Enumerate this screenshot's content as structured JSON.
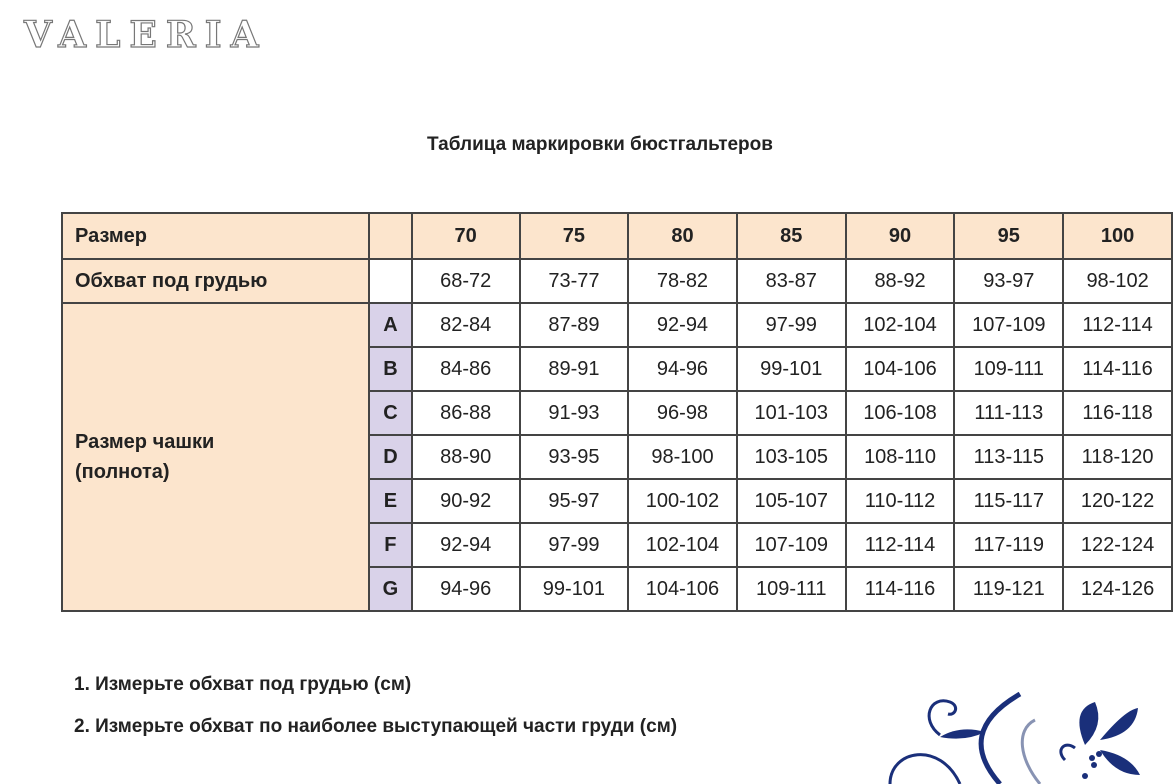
{
  "logo": "VALERIA",
  "title": "Таблица маркировки бюстгальтеров",
  "table": {
    "row_size_label": "Размер",
    "sizes": [
      "70",
      "75",
      "80",
      "85",
      "90",
      "95",
      "100"
    ],
    "row_underbust_label": "Обхват под грудью",
    "underbust": [
      "68-72",
      "73-77",
      "78-82",
      "83-87",
      "88-92",
      "93-97",
      "98-102"
    ],
    "cup_label": "Размер чашки (полнота)",
    "cups": [
      {
        "letter": "A",
        "values": [
          "82-84",
          "87-89",
          "92-94",
          "97-99",
          "102-104",
          "107-109",
          "112-114"
        ]
      },
      {
        "letter": "B",
        "values": [
          "84-86",
          "89-91",
          "94-96",
          "99-101",
          "104-106",
          "109-111",
          "114-116"
        ]
      },
      {
        "letter": "C",
        "values": [
          "86-88",
          "91-93",
          "96-98",
          "101-103",
          "106-108",
          "111-113",
          "116-118"
        ]
      },
      {
        "letter": "D",
        "values": [
          "88-90",
          "93-95",
          "98-100",
          "103-105",
          "108-110",
          "113-115",
          "118-120"
        ]
      },
      {
        "letter": "E",
        "values": [
          "90-92",
          "95-97",
          "100-102",
          "105-107",
          "110-112",
          "115-117",
          "120-122"
        ]
      },
      {
        "letter": "F",
        "values": [
          "92-94",
          "97-99",
          "102-104",
          "107-109",
          "112-114",
          "117-119",
          "122-124"
        ]
      },
      {
        "letter": "G",
        "values": [
          "94-96",
          "99-101",
          "104-106",
          "109-111",
          "114-116",
          "119-121",
          "124-126"
        ]
      }
    ]
  },
  "notes": [
    "1. Измерьте обхват под грудью (см)",
    "2. Измерьте обхват по наиболее выступающей части груди (см)"
  ],
  "colors": {
    "header_bg": "#fce5cd",
    "cup_letter_bg": "#d9d2e9",
    "ornament": "#1a2f7a"
  }
}
